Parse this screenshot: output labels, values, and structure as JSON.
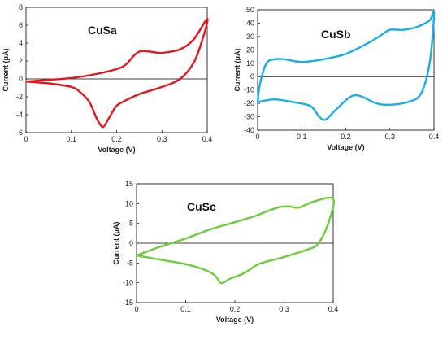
{
  "chart_data": [
    {
      "type": "line",
      "title": "CuSa",
      "xlabel": "Voltage (V)",
      "ylabel": "Current (μA)",
      "xlim": [
        0,
        0.4
      ],
      "ylim": [
        -6,
        8
      ],
      "xticks": [
        "0",
        "0.1",
        "0.2",
        "0.3",
        "0.4"
      ],
      "yticks": [
        "-6",
        "-4",
        "-2",
        "0",
        "2",
        "4",
        "6",
        "8"
      ],
      "color": "#e8141c",
      "grid": false,
      "series": [
        {
          "x": [
            0,
            0.05,
            0.1,
            0.15,
            0.2,
            0.22,
            0.24,
            0.255,
            0.28,
            0.3,
            0.34,
            0.37,
            0.4,
            0.39,
            0.37,
            0.34,
            0.3,
            0.25,
            0.22,
            0.2,
            0.185,
            0.172,
            0.165,
            0.155,
            0.14,
            0.12,
            0.1,
            0.05,
            0
          ],
          "y": [
            -0.3,
            -0.1,
            0.1,
            0.5,
            1.1,
            1.6,
            2.7,
            3.1,
            3.0,
            2.9,
            3.3,
            4.4,
            6.7,
            4.5,
            1.8,
            0.0,
            -0.9,
            -1.7,
            -2.4,
            -3.0,
            -4.2,
            -5.3,
            -5.2,
            -4.3,
            -2.6,
            -1.5,
            -0.9,
            -0.5,
            -0.3
          ]
        }
      ]
    },
    {
      "type": "line",
      "title": "CuSb",
      "xlabel": "Voltage (V)",
      "ylabel": "Current (μA)",
      "xlim": [
        0,
        0.4
      ],
      "ylim": [
        -40,
        50
      ],
      "xticks": [
        "0",
        "0.1",
        "0.2",
        "0.3",
        "0.4"
      ],
      "yticks": [
        "-40",
        "-30",
        "-20",
        "-10",
        "0",
        "10",
        "20",
        "30",
        "40",
        "50"
      ],
      "color": "#18aee6",
      "grid": false,
      "series": [
        {
          "x": [
            0,
            0.005,
            0.02,
            0.04,
            0.06,
            0.1,
            0.15,
            0.2,
            0.25,
            0.28,
            0.3,
            0.33,
            0.36,
            0.39,
            0.4,
            0.39,
            0.37,
            0.34,
            0.3,
            0.27,
            0.22,
            0.18,
            0.155,
            0.14,
            0.12,
            0.08,
            0.04,
            0.015,
            0
          ],
          "y": [
            -19,
            -6,
            10,
            13,
            13,
            11,
            13,
            17,
            25,
            31,
            35,
            35,
            37,
            42,
            47,
            10,
            -13,
            -19,
            -21,
            -20,
            -14,
            -24,
            -32,
            -30,
            -22,
            -19,
            -17,
            -18,
            -19
          ]
        }
      ]
    },
    {
      "type": "line",
      "title": "CuSc",
      "xlabel": "Voltage (V)",
      "ylabel": "Current (μA)",
      "xlim": [
        0,
        0.4
      ],
      "ylim": [
        -15,
        15
      ],
      "xticks": [
        "0",
        "0.1",
        "0.2",
        "0.3",
        "0.4"
      ],
      "yticks": [
        "-15",
        "-10",
        "-5",
        "0",
        "5",
        "10",
        "15"
      ],
      "color": "#6ecb3c",
      "grid": false,
      "series": [
        {
          "x": [
            0,
            0.05,
            0.1,
            0.15,
            0.2,
            0.24,
            0.26,
            0.29,
            0.31,
            0.33,
            0.36,
            0.4,
            0.39,
            0.37,
            0.35,
            0.3,
            0.25,
            0.22,
            0.19,
            0.172,
            0.16,
            0.14,
            0.1,
            0.05,
            0
          ],
          "y": [
            -3.1,
            -0.8,
            1.2,
            3.5,
            5.3,
            6.8,
            7.8,
            9.1,
            9.3,
            9.0,
            10.5,
            11.2,
            5.0,
            0.0,
            -1.5,
            -3.5,
            -5.2,
            -7.5,
            -9.0,
            -10.1,
            -8.2,
            -6.8,
            -5.3,
            -4.2,
            -3.1
          ]
        }
      ]
    }
  ]
}
